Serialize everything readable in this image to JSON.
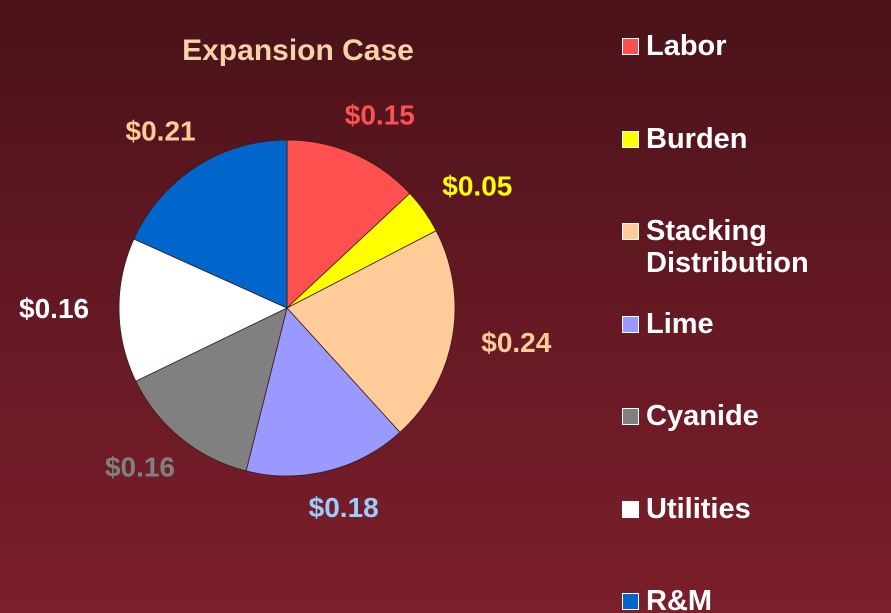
{
  "chart_data": {
    "type": "pie",
    "title": "Expansion Case",
    "categories": [
      "Labor",
      "Burden",
      "Stacking Distribution",
      "Lime",
      "Cyanide",
      "Utilities",
      "R&M"
    ],
    "values": [
      0.15,
      0.05,
      0.24,
      0.18,
      0.16,
      0.16,
      0.21
    ],
    "value_labels": [
      "$0.15",
      "$0.05",
      "$0.24",
      "$0.18",
      "$0.16",
      "$0.16",
      "$0.21"
    ],
    "colors": [
      "#ff5050",
      "#ffff00",
      "#ffcc99",
      "#9999ff",
      "#808080",
      "#ffffff",
      "#0066cc"
    ],
    "label_colors": [
      "#ff5050",
      "#ffff00",
      "#ffcc99",
      "#99ccff",
      "#808080",
      "#ffffff",
      "#ffcc99"
    ],
    "legend": "right"
  }
}
